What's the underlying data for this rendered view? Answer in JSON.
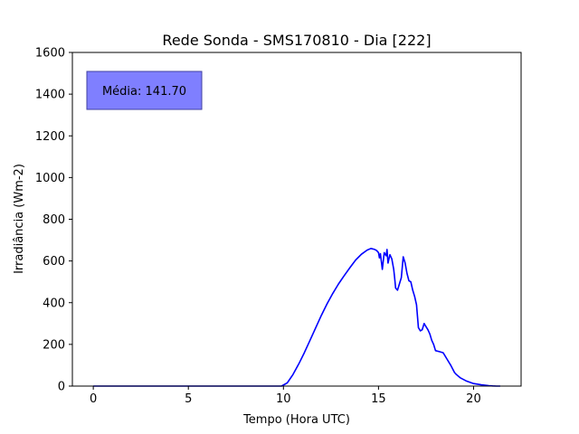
{
  "chart_data": {
    "type": "line",
    "title": "Rede Sonda - SMS170810 - Dia [222]",
    "xlabel": "Tempo (Hora UTC)",
    "ylabel": "Irradiância (Wm-2)",
    "xlim": [
      -1.1,
      22.5
    ],
    "ylim": [
      0,
      1600
    ],
    "xticks": [
      0,
      5,
      10,
      15,
      20
    ],
    "yticks": [
      0,
      200,
      400,
      600,
      800,
      1000,
      1200,
      1400,
      1600
    ],
    "grid": false,
    "annotation": "Média: 141.70",
    "series": [
      {
        "color": "#0000ff",
        "x": [
          0,
          5,
          9.9,
          10.2,
          10.5,
          10.8,
          11.1,
          11.4,
          11.7,
          12.0,
          12.3,
          12.6,
          12.9,
          13.2,
          13.5,
          13.8,
          14.1,
          14.4,
          14.6,
          14.8,
          14.9,
          15.0,
          15.05,
          15.1,
          15.2,
          15.3,
          15.4,
          15.45,
          15.5,
          15.6,
          15.7,
          15.8,
          15.85,
          15.9,
          16.0,
          16.1,
          16.2,
          16.3,
          16.4,
          16.5,
          16.6,
          16.7,
          16.8,
          16.9,
          17.0,
          17.1,
          17.2,
          17.3,
          17.4,
          17.5,
          17.6,
          17.7,
          17.8,
          17.9,
          18.0,
          18.2,
          18.4,
          18.6,
          18.8,
          19.0,
          19.1,
          19.3,
          19.6,
          20.0,
          20.4,
          20.8,
          21.0,
          21.2,
          21.4
        ],
        "y": [
          0,
          0,
          0,
          15,
          55,
          105,
          160,
          220,
          280,
          340,
          395,
          445,
          490,
          530,
          568,
          605,
          632,
          652,
          660,
          655,
          650,
          640,
          615,
          635,
          560,
          640,
          625,
          655,
          590,
          630,
          610,
          560,
          520,
          470,
          460,
          490,
          520,
          620,
          590,
          540,
          505,
          500,
          460,
          430,
          390,
          280,
          265,
          270,
          300,
          285,
          270,
          250,
          220,
          200,
          170,
          165,
          160,
          130,
          100,
          65,
          55,
          40,
          25,
          12,
          6,
          2,
          1,
          0,
          0
        ]
      }
    ]
  }
}
